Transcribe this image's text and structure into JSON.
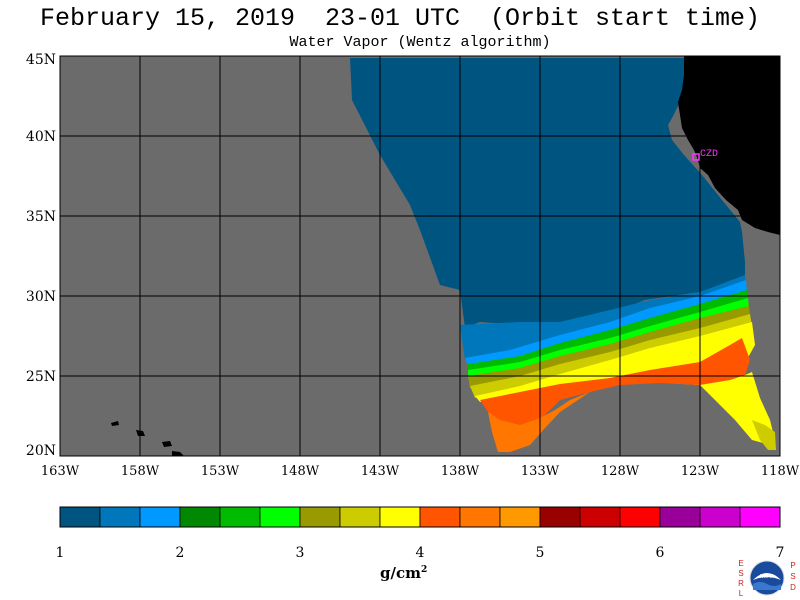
{
  "header": {
    "title": "February 15, 2019  23-01 UTC  (Orbit start time)",
    "subtitle": "Water Vapor (Wentz algorithm)"
  },
  "map": {
    "lat_labels": [
      "45N",
      "40N",
      "35N",
      "30N",
      "25N",
      "20N"
    ],
    "lon_labels": [
      "163W",
      "158W",
      "153W",
      "148W",
      "143W",
      "138W",
      "133W",
      "128W",
      "123W",
      "118W"
    ],
    "lat_range": [
      20,
      45
    ],
    "lon_range": [
      -163,
      -118
    ],
    "station_label": "CZD",
    "station_color": "#ff33ff",
    "land_color": "#000000",
    "nodata_color": "#6b6b6b"
  },
  "colorbar": {
    "colors": [
      "#005580",
      "#0077bb",
      "#0099ff",
      "#008800",
      "#00bb00",
      "#00ff00",
      "#999900",
      "#cccc00",
      "#ffff00",
      "#ff5500",
      "#ff7700",
      "#ff9900",
      "#990000",
      "#cc0000",
      "#ff0000",
      "#990099",
      "#cc00cc",
      "#ff00ff"
    ],
    "tick_labels": [
      "1",
      "2",
      "3",
      "4",
      "5",
      "6",
      "7"
    ],
    "unit": "g/cm",
    "unit_sup": "2"
  },
  "logo": {
    "left_letters": "ESRL",
    "right_letters": "PSD",
    "center": "NOAA"
  }
}
